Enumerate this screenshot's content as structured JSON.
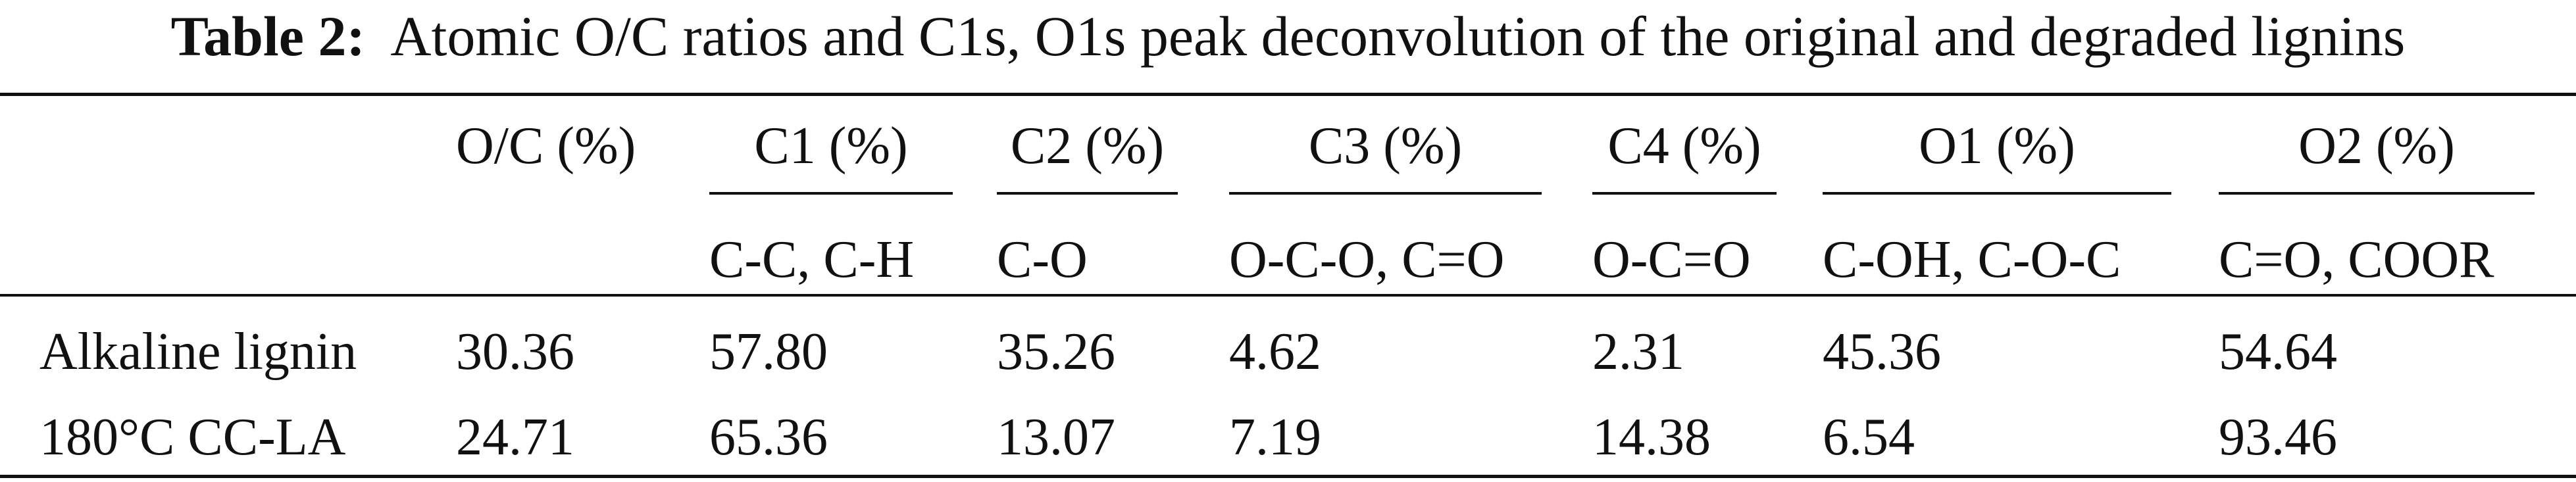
{
  "caption": {
    "label": "Table 2:",
    "text": "Atomic O/C ratios and C1s, O1s peak deconvolution of the original and degraded lignins"
  },
  "table": {
    "headers": {
      "oc": "O/C (%)",
      "c1": "C1 (%)",
      "c2": "C2 (%)",
      "c3": "C3 (%)",
      "c4": "C4 (%)",
      "o1": "O1 (%)",
      "o2": "O2 (%)"
    },
    "subheaders": {
      "c1": "C-C, C-H",
      "c2": "C-O",
      "c3": "O-C-O, C=O",
      "c4": "O-C=O",
      "o1": "C-OH, C-O-C",
      "o2": "C=O, COOR"
    },
    "rows": [
      {
        "sample": "Alkaline lignin",
        "oc": "30.36",
        "c1": "57.80",
        "c2": "35.26",
        "c3": "4.62",
        "c4": "2.31",
        "o1": "45.36",
        "o2": "54.64"
      },
      {
        "sample": "180°C CC-LA",
        "oc": "24.71",
        "c1": "65.36",
        "c2": "13.07",
        "c3": "7.19",
        "c4": "14.38",
        "o1": "6.54",
        "o2": "93.46"
      }
    ]
  }
}
